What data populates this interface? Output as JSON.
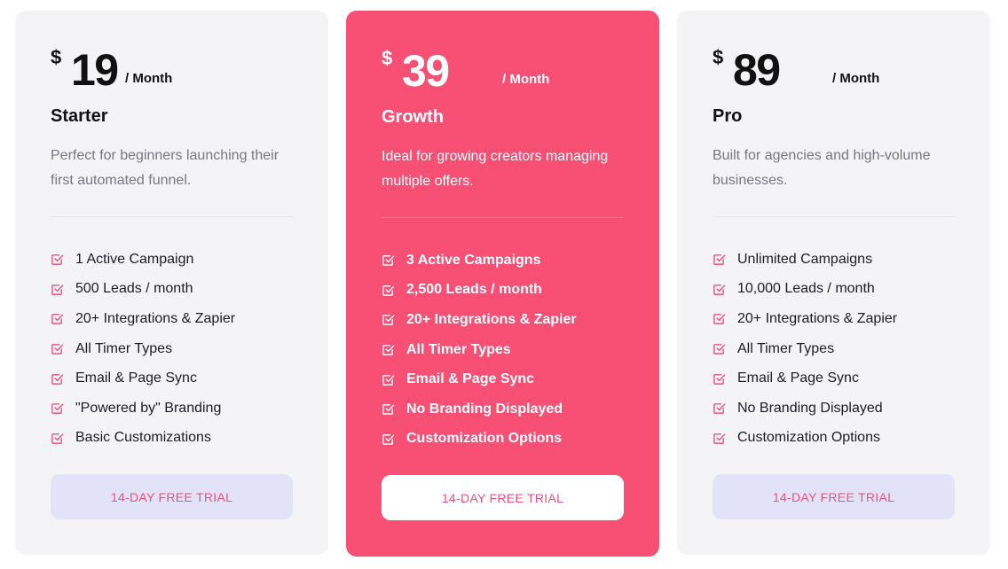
{
  "colors": {
    "accent": "#f84f75",
    "card_bg": "#f4f4f7",
    "cta_bg": "#e2e3f8",
    "cta_text": "#f0507a",
    "check_icon": "#f0507a"
  },
  "plans": [
    {
      "currency": "$",
      "price": "19",
      "period": "/ Month",
      "name": "Starter",
      "description": "Perfect for beginners launching their first automated funnel.",
      "features": [
        {
          "icon": "check-square-icon",
          "label": "1 Active Campaign"
        },
        {
          "icon": "check-square-icon",
          "label": "500 Leads / month"
        },
        {
          "icon": "check-square-icon",
          "label": "20+ Integrations & Zapier"
        },
        {
          "icon": "check-square-icon",
          "label": "All Timer Types"
        },
        {
          "icon": "check-square-icon",
          "label": "Email & Page Sync"
        },
        {
          "icon": "check-square-icon",
          "label": "\"Powered by\" Branding"
        },
        {
          "icon": "check-square-icon",
          "label": "Basic Customizations"
        }
      ],
      "cta_label": "14-DAY FREE TRIAL"
    },
    {
      "currency": "$",
      "price": "39",
      "period": "/ Month",
      "name": "Growth",
      "description": "Ideal for growing creators managing multiple offers.",
      "features": [
        {
          "icon": "check-square-icon",
          "label": "3 Active Campaigns"
        },
        {
          "icon": "check-square-icon",
          "label": "2,500 Leads / month"
        },
        {
          "icon": "check-square-icon",
          "label": "20+ Integrations & Zapier"
        },
        {
          "icon": "check-square-icon",
          "label": "All Timer Types"
        },
        {
          "icon": "check-square-icon",
          "label": "Email & Page Sync"
        },
        {
          "icon": "check-square-icon",
          "label": "No Branding Displayed"
        },
        {
          "icon": "check-square-icon",
          "label": "Customization Options"
        }
      ],
      "cta_label": "14-DAY FREE TRIAL"
    },
    {
      "currency": "$",
      "price": "89",
      "period": "/ Month",
      "name": "Pro",
      "description": "Built for agencies and high-volume businesses.",
      "features": [
        {
          "icon": "check-square-icon",
          "label": "Unlimited Campaigns"
        },
        {
          "icon": "check-square-icon",
          "label": "10,000 Leads / month"
        },
        {
          "icon": "check-square-icon",
          "label": "20+ Integrations & Zapier"
        },
        {
          "icon": "check-square-icon",
          "label": "All Timer Types"
        },
        {
          "icon": "check-square-icon",
          "label": "Email & Page Sync"
        },
        {
          "icon": "check-square-icon",
          "label": "No Branding Displayed"
        },
        {
          "icon": "check-square-icon",
          "label": "Customization Options"
        }
      ],
      "cta_label": "14-DAY FREE TRIAL"
    }
  ]
}
